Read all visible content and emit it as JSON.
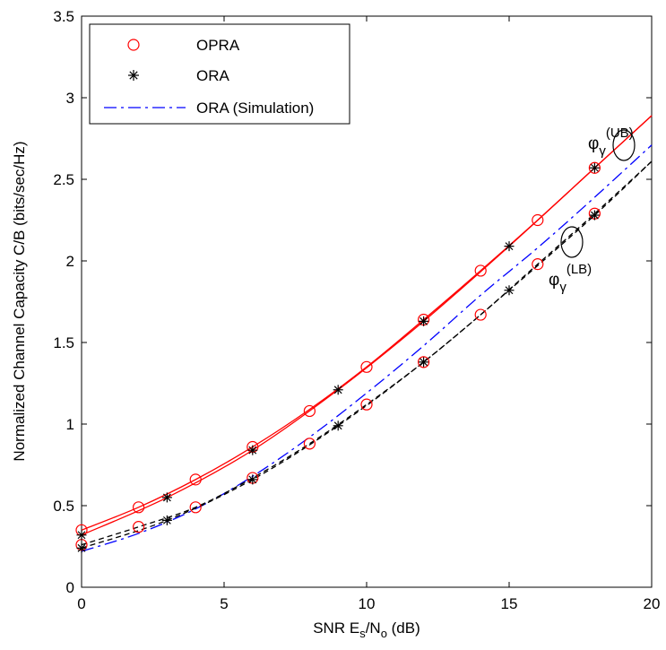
{
  "chart_data": {
    "type": "line",
    "title": "",
    "xlabel": {
      "main": "SNR E",
      "sub1": "s",
      "mid": "/N",
      "sub2": "o",
      "tail": " (dB)"
    },
    "ylabel": "Normalized Channel Capacity  C/B (bits/sec/Hz)",
    "xlim": [
      0,
      20
    ],
    "ylim": [
      0,
      3.5
    ],
    "xticks": [
      0,
      5,
      10,
      15,
      20
    ],
    "xtick_labels": [
      "0",
      "5",
      "10",
      "15",
      "20"
    ],
    "yticks": [
      0,
      0.5,
      1,
      1.5,
      2,
      2.5,
      3,
      3.5
    ],
    "ytick_labels": [
      "0",
      "0.5",
      "1",
      "1.5",
      "2",
      "2.5",
      "3",
      "3.5"
    ],
    "grid": false,
    "legend_position": "top-left",
    "legend": [
      {
        "label": "OPRA",
        "marker": "circle",
        "color": "#ff0000"
      },
      {
        "label": "ORA",
        "marker": "asterisk",
        "color": "#000000"
      },
      {
        "label": "ORA (Simulation)",
        "marker": "dashdot-line",
        "color": "#0000ff"
      }
    ],
    "series": [
      {
        "role": "OPRA upper bound",
        "line_style": "solid",
        "color": "#ff0000",
        "x": [
          0,
          2,
          4,
          6,
          8,
          10,
          12,
          14,
          16,
          18,
          20
        ],
        "y": [
          0.35,
          0.49,
          0.66,
          0.86,
          1.09,
          1.35,
          1.64,
          1.94,
          2.25,
          2.57,
          2.89
        ]
      },
      {
        "role": "ORA upper bound",
        "line_style": "solid",
        "color": "#ff0000",
        "x": [
          0,
          3,
          6,
          9,
          12,
          15,
          18,
          20
        ],
        "y": [
          0.32,
          0.55,
          0.84,
          1.21,
          1.63,
          2.09,
          2.57,
          2.89
        ]
      },
      {
        "role": "ORA simulation",
        "line_style": "dashdot",
        "color": "#0000ff",
        "x": [
          0,
          2,
          4,
          6,
          8,
          10,
          12,
          14,
          16,
          18,
          20
        ],
        "y": [
          0.22,
          0.33,
          0.48,
          0.68,
          0.92,
          1.19,
          1.48,
          1.79,
          2.08,
          2.39,
          2.71
        ]
      },
      {
        "role": "OPRA lower bound",
        "line_style": "dashed",
        "color": "#000000",
        "x": [
          0,
          2,
          4,
          6,
          8,
          10,
          12,
          14,
          16,
          18,
          20
        ],
        "y": [
          0.26,
          0.37,
          0.49,
          0.67,
          0.88,
          1.12,
          1.38,
          1.67,
          1.98,
          2.29,
          2.61
        ]
      },
      {
        "role": "ORA lower bound",
        "line_style": "dashed",
        "color": "#000000",
        "x": [
          0,
          3,
          6,
          9,
          12,
          15,
          18,
          20
        ],
        "y": [
          0.24,
          0.41,
          0.66,
          0.99,
          1.38,
          1.82,
          2.28,
          2.61
        ]
      }
    ],
    "markers": {
      "opra_circles": {
        "color": "#ff0000",
        "x": [
          0,
          2,
          4,
          6,
          8,
          10,
          12,
          14,
          16,
          18,
          0,
          2,
          4,
          6,
          8,
          10,
          12,
          14,
          16,
          18
        ],
        "y": [
          0.35,
          0.49,
          0.66,
          0.86,
          1.08,
          1.35,
          1.64,
          1.94,
          2.25,
          2.57,
          0.26,
          0.37,
          0.49,
          0.67,
          0.88,
          1.12,
          1.38,
          1.67,
          1.98,
          2.29
        ]
      },
      "ora_asterisks": {
        "color": "#000000",
        "x": [
          0,
          3,
          6,
          9,
          12,
          15,
          18,
          0,
          3,
          6,
          9,
          12,
          15,
          18
        ],
        "y": [
          0.32,
          0.55,
          0.84,
          1.21,
          1.63,
          2.09,
          2.57,
          0.24,
          0.41,
          0.66,
          0.99,
          1.38,
          1.82,
          2.28
        ]
      }
    },
    "annotations": [
      {
        "name": "upper-bound-label",
        "base": "φ",
        "sub": "γ",
        "sup": "(UB)"
      },
      {
        "name": "lower-bound-label",
        "base": "φ",
        "sub": "γ",
        "sup": "(LB)"
      }
    ]
  }
}
